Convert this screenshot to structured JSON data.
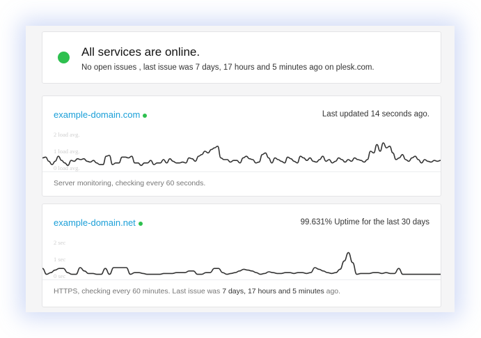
{
  "status": {
    "icon": "status-online-dot",
    "title": "All services are online.",
    "subtitle": "No open issues , last issue was 7 days, 17 hours and 5 minutes ago on plesk.com."
  },
  "colors": {
    "online": "#2ec04f",
    "link": "#1a9fd8",
    "line": "#333333"
  },
  "sites": [
    {
      "name": "example-domain.com",
      "right_text": "Last updated 14 seconds ago.",
      "footer_text": "Server monitoring, checking every 60 seconds."
    },
    {
      "name": "example-domain.net",
      "right_text": "99.631% Uptime for the last 30 days",
      "footer_prefix": "HTTPS, checking every 60 minutes. Last issue was ",
      "footer_bold": "7 days, 17 hours and 5 minutes",
      "footer_suffix": " ago."
    }
  ],
  "chart_data": [
    {
      "type": "line",
      "ylabel_ticks": [
        "0 load avg.",
        "1 load avg.",
        "2 load avg."
      ],
      "ylim": [
        0,
        2.6
      ],
      "values": [
        0.6,
        0.65,
        0.4,
        0.2,
        0.4,
        0.7,
        0.45,
        0.3,
        0.15,
        0.45,
        0.4,
        0.55,
        0.5,
        0.55,
        0.4,
        0.35,
        0.45,
        0.3,
        0.2,
        0.2,
        0.7,
        0.75,
        0.2,
        0.3,
        0.3,
        0.65,
        0.65,
        0.6,
        0.7,
        0.3,
        0.3,
        0.15,
        0.3,
        0.3,
        0.45,
        0.2,
        0.3,
        0.3,
        0.5,
        0.3,
        0.55,
        0.4,
        0.3,
        0.3,
        0.35,
        0.3,
        0.6,
        0.55,
        0.4,
        0.7,
        0.8,
        1.0,
        0.9,
        1.1,
        1.2,
        1.3,
        0.6,
        0.5,
        0.5,
        0.35,
        0.45,
        0.45,
        0.3,
        0.6,
        0.7,
        0.55,
        0.5,
        0.3,
        0.35,
        0.8,
        0.9,
        0.6,
        0.3,
        0.6,
        0.5,
        0.4,
        0.3,
        0.65,
        0.55,
        0.4,
        0.3,
        0.7,
        0.6,
        0.45,
        0.6,
        0.4,
        0.35,
        0.5,
        0.7,
        0.4,
        0.5,
        0.3,
        0.4,
        0.6,
        0.5,
        0.35,
        0.5,
        0.4,
        0.6,
        0.5,
        0.45,
        0.35,
        0.5,
        1.0,
        0.9,
        1.4,
        1.0,
        1.5,
        1.2,
        1.3,
        0.9,
        0.5,
        0.6,
        0.8,
        0.5,
        0.4,
        0.6,
        0.7,
        0.5,
        0.3,
        0.5,
        0.4,
        0.35,
        0.45,
        0.4,
        0.45
      ]
    },
    {
      "type": "line",
      "ylabel_ticks": [
        "0 sec",
        "1 sec",
        "2 sec"
      ],
      "ylim": [
        0,
        2.6
      ],
      "values": [
        0.45,
        0.1,
        0.2,
        0.35,
        0.45,
        0.45,
        0.2,
        0.1,
        0.1,
        0.5,
        0.3,
        0.15,
        0.15,
        0.1,
        0.1,
        0.45,
        0.1,
        0.5,
        0.5,
        0.5,
        0.5,
        0.1,
        0.2,
        0.2,
        0.15,
        0.1,
        0.1,
        0.1,
        0.1,
        0.15,
        0.15,
        0.15,
        0.2,
        0.2,
        0.2,
        0.3,
        0.3,
        0.1,
        0.1,
        0.2,
        0.2,
        0.45,
        0.45,
        0.2,
        0.1,
        0.15,
        0.2,
        0.3,
        0.4,
        0.35,
        0.3,
        0.2,
        0.1,
        0.15,
        0.25,
        0.2,
        0.15,
        0.15,
        0.2,
        0.2,
        0.15,
        0.2,
        0.2,
        0.15,
        0.2,
        0.5,
        0.4,
        0.3,
        0.2,
        0.15,
        0.2,
        0.4,
        0.9,
        1.4,
        0.8,
        0.1,
        0.15,
        0.15,
        0.15,
        0.2,
        0.2,
        0.15,
        0.2,
        0.15,
        0.15,
        0.45,
        0.1,
        0.1,
        0.1,
        0.1,
        0.1,
        0.1,
        0.1,
        0.1,
        0.1,
        0.1
      ]
    }
  ]
}
